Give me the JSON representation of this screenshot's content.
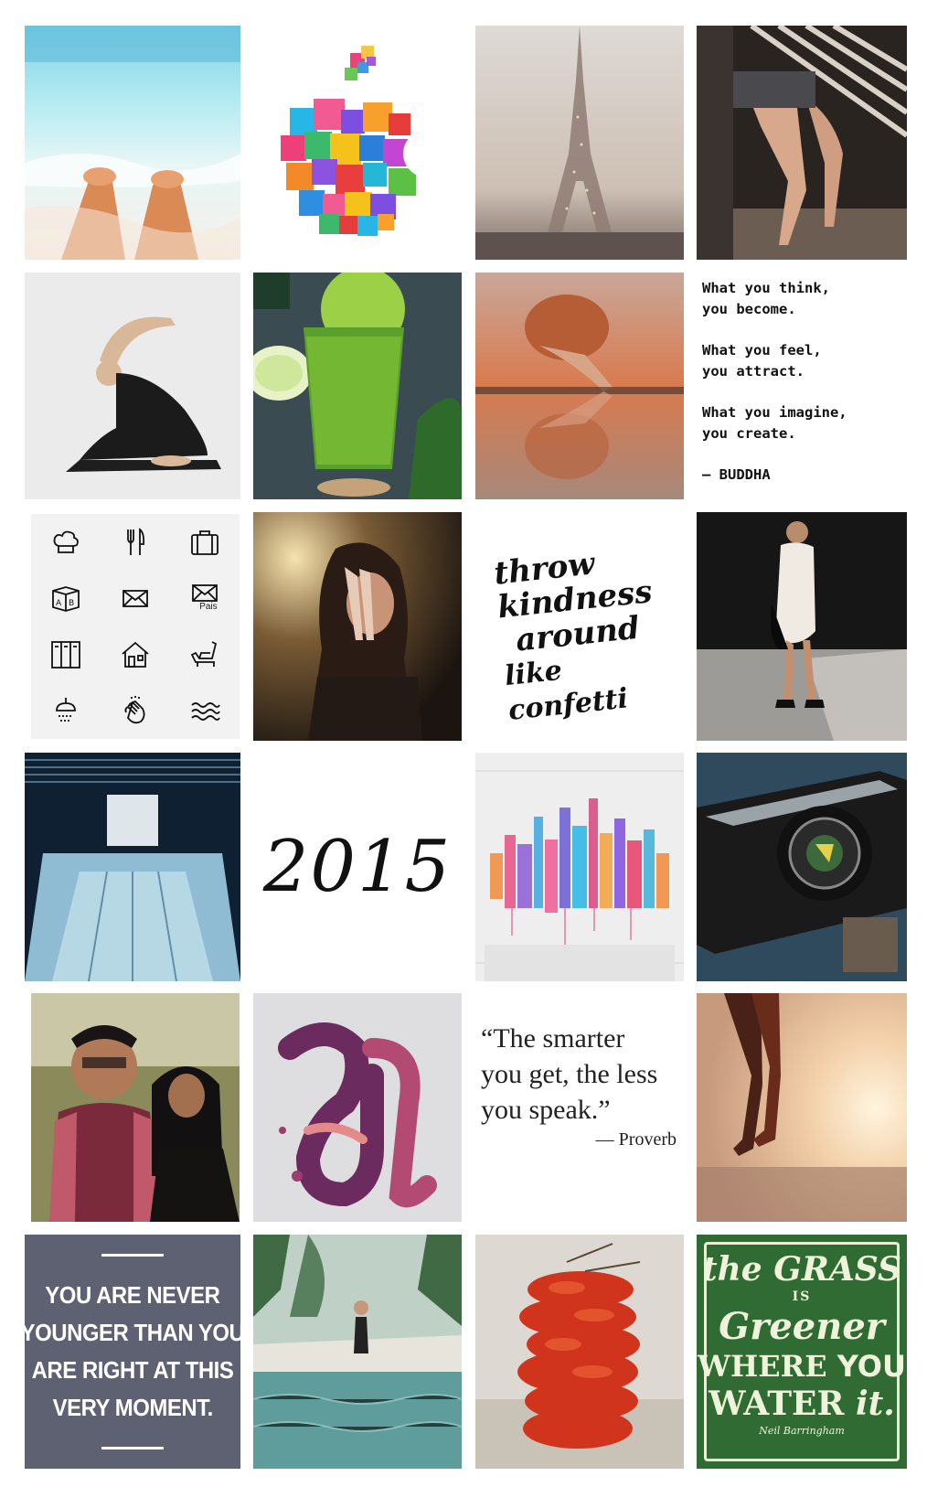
{
  "photos": [
    {
      "id": "beach-feet",
      "desc": ""
    },
    {
      "id": "apple-logo",
      "desc": ""
    }
  ],
  "quote_buddha": {
    "lines": [
      [
        "What you think,",
        "you become."
      ],
      [
        "What you feel,",
        "you attract."
      ],
      [
        "What you imagine,",
        "you create."
      ]
    ],
    "attribution": "— BUDDHA"
  },
  "icons": {
    "names": [
      "chef-hat-icon",
      "fork-knife-icon",
      "suitcase-icon",
      "blocks-ab-icon",
      "envelope-icon",
      "envelope-pais-icon",
      "lockers-icon",
      "house-icon",
      "recliner-icon",
      "shower-icon",
      "hand-wash-icon",
      "waves-icon"
    ],
    "pais_label": "Pais"
  },
  "kindness": {
    "lines": [
      "throw",
      "kindness",
      "around",
      "like confetti"
    ]
  },
  "year": {
    "text": "2015"
  },
  "quote_proverb": {
    "lines": [
      "“The smarter",
      "you get, the less",
      "you speak.”"
    ],
    "attribution": "— Proverb"
  },
  "quote_moment": {
    "lines": [
      "YOU ARE NEVER",
      "YOUNGER THAN YOU",
      "ARE RIGHT AT THIS",
      "VERY MOMENT."
    ]
  },
  "grass": {
    "line1": "the GRASS",
    "line2": "IS",
    "line3": "Greener",
    "line4a": "WHERE",
    "line4b": "YOU",
    "line5a": "WATER",
    "line5b": "it.",
    "signature": "Neil Barringham"
  },
  "colors": {
    "quote_bg": "#5e6172",
    "grass_bg": "#2f6b32"
  }
}
